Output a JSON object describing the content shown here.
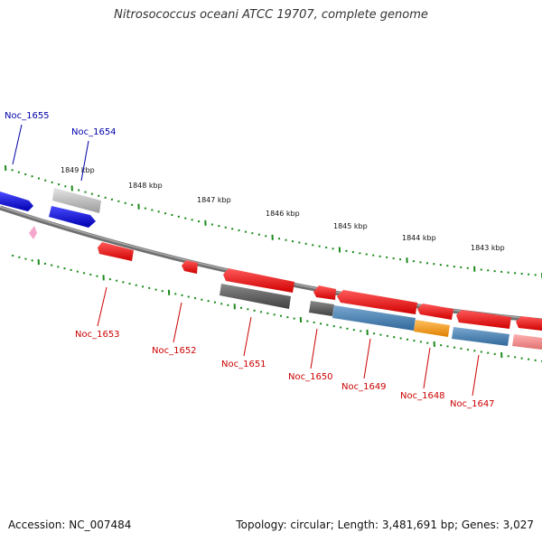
{
  "title": "Nitrosococcus oceani ATCC 19707, complete genome",
  "accession": "Accession: NC_007484",
  "topology": "Topology: circular; Length: 3,481,691 bp; Genes: 3,027",
  "scale_labels": [
    "1849 kbp",
    "1848 kbp",
    "1847 kbp",
    "1846 kbp",
    "1845 kbp",
    "1844 kbp",
    "1843 kbp"
  ],
  "gene_labels_top": [
    "Noc_1655",
    "Noc_1654"
  ],
  "gene_labels_bottom": [
    "Noc_1653",
    "Noc_1652",
    "Noc_1651",
    "Noc_1650",
    "Noc_1649",
    "Noc_1648",
    "Noc_1647"
  ],
  "colors": {
    "forward_label": "#0000aa",
    "reverse_label": "#cc0000",
    "tick": "#1a8a1a",
    "backbone": "#777777",
    "blue": "#1010e0",
    "silver": "#b8b8b8",
    "red": "#ee0000",
    "gray": "#5c5c5c",
    "steel": "#4a82b4",
    "orange": "#f09a10",
    "salmon": "#f08a8a",
    "pink": "#f4a6cc"
  }
}
